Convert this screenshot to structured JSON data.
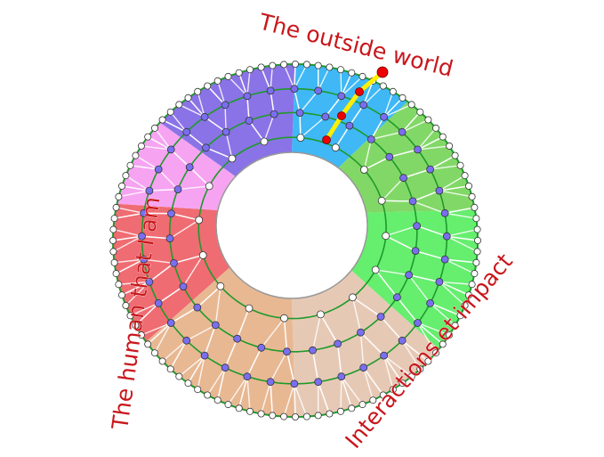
{
  "labels": {
    "top": "The outside world",
    "left": "The human that I am",
    "right": "Interactions et impact"
  },
  "sectors": [
    {
      "name": "blue",
      "color": "#3fb8f5"
    },
    {
      "name": "dark-green",
      "color": "#82d867"
    },
    {
      "name": "light-green",
      "color": "#66ee6f"
    },
    {
      "name": "light-beige",
      "color": "#e6c9b5"
    },
    {
      "name": "tan",
      "color": "#e8b893"
    },
    {
      "name": "red",
      "color": "#ef6c72"
    },
    {
      "name": "pink",
      "color": "#f6a4f2"
    },
    {
      "name": "purple",
      "color": "#8a73e6"
    }
  ],
  "colors": {
    "ring_line": "#1e9a2a",
    "spoke": "#ffffff",
    "inner_node": "#7a6ef0",
    "edge_node": "#ffffff",
    "path": "#ffef00",
    "path_node": "#ee0000",
    "label": "#c8171c"
  }
}
